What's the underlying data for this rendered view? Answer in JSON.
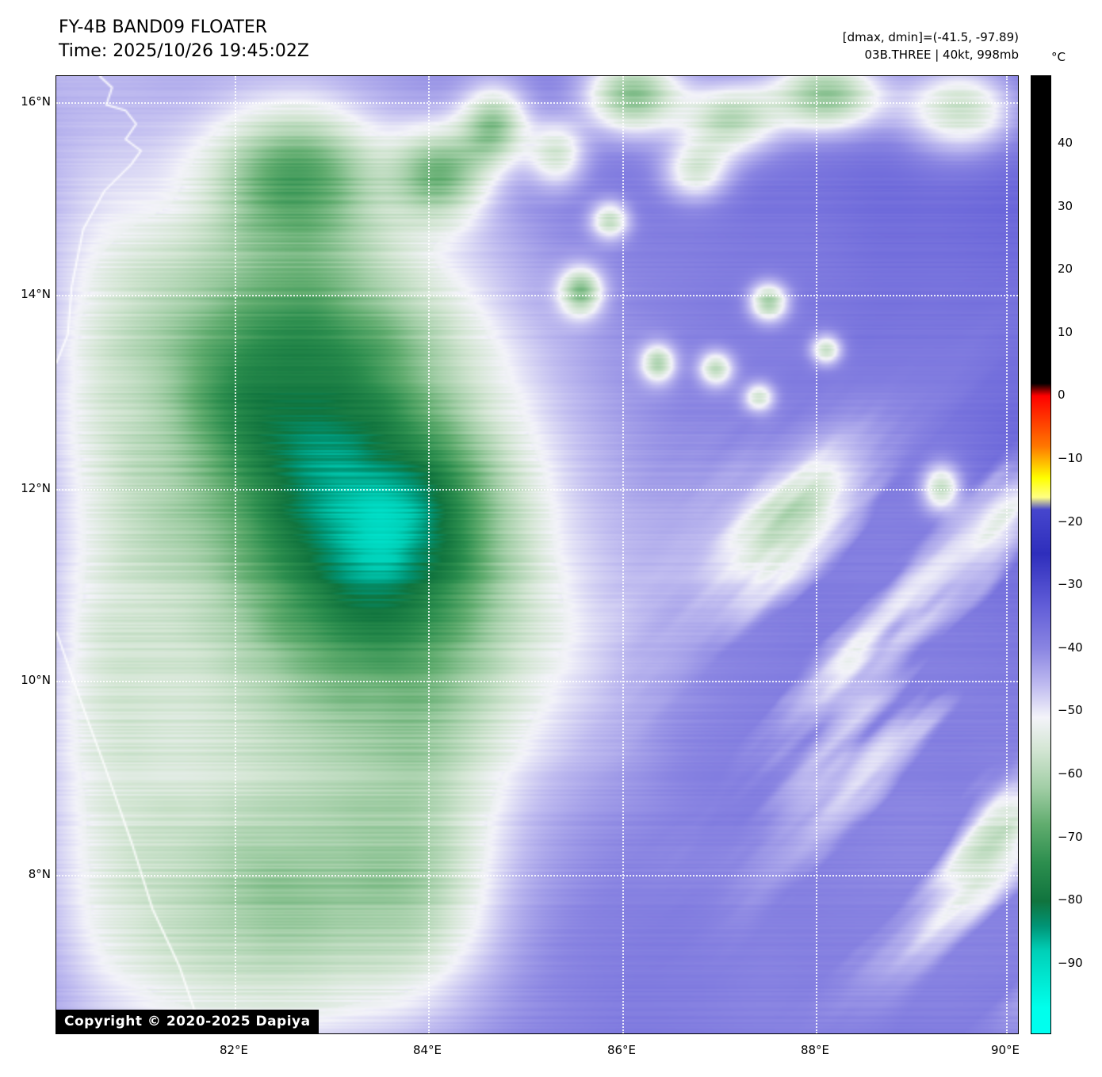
{
  "header": {
    "title": "FY-4B BAND09 FLOATER",
    "time": "Time: 2025/10/26 19:45:02Z",
    "dmax_dmin": "[dmax, dmin]=(-41.5, -97.89)",
    "storm_info": "03B.THREE | 40kt, 998mb"
  },
  "map": {
    "lat_labels": [
      "16°N",
      "14°N",
      "12°N",
      "10°N",
      "8°N"
    ],
    "lon_labels": [
      "82°E",
      "84°E",
      "86°E",
      "88°E",
      "90°E"
    ],
    "copyright": "Copyright © 2020-2025 Dapiya"
  },
  "colorbar": {
    "unit": "°C",
    "ticks": [
      "40",
      "30",
      "20",
      "10",
      "0",
      "−10",
      "−20",
      "−30",
      "−40",
      "−50",
      "−60",
      "−70",
      "−80",
      "−90"
    ]
  },
  "colors": {
    "ocean_background": "#8a85e2",
    "cloud_shield_green": "#2e8c4e",
    "cold_core_cyan": "#00e0c6",
    "warm_scale_red": "#ff0000",
    "scale_top_black": "#000000"
  }
}
